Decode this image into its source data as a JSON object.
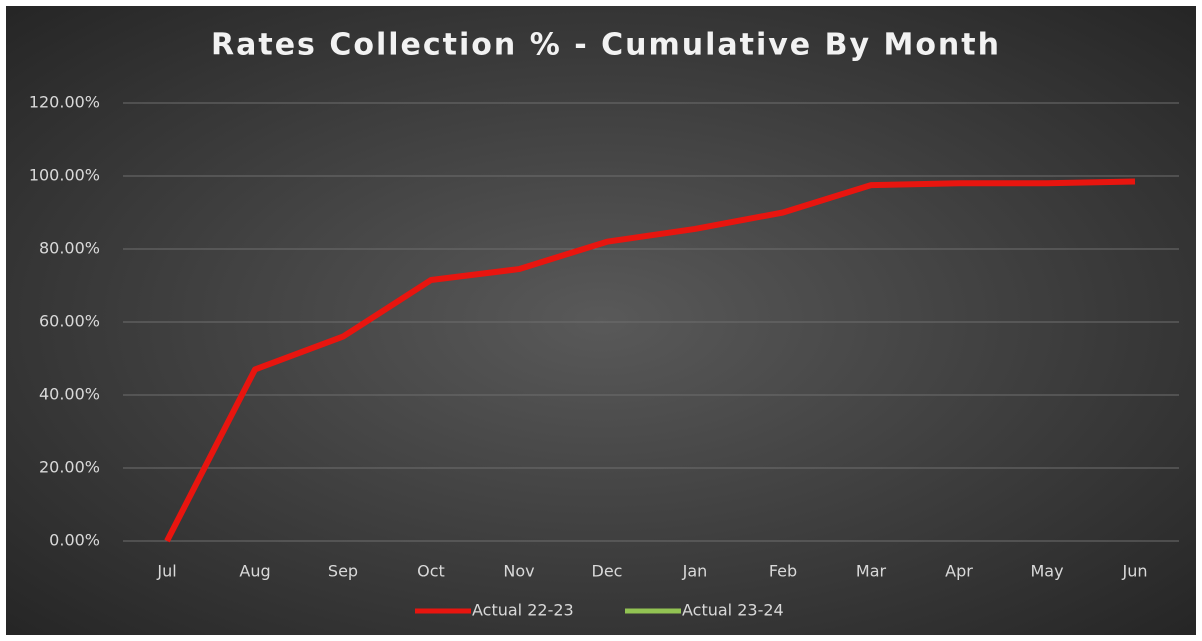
{
  "chart_data": {
    "type": "line",
    "title": "Rates Collection % - Cumulative By Month",
    "categories": [
      "Jul",
      "Aug",
      "Sep",
      "Oct",
      "Nov",
      "Dec",
      "Jan",
      "Feb",
      "Mar",
      "Apr",
      "May",
      "Jun"
    ],
    "series": [
      {
        "name": "Actual 22-23",
        "color": "#e8150f",
        "values": [
          0,
          47,
          56,
          71.5,
          74.5,
          82,
          85.5,
          90,
          97.5,
          98,
          98,
          98.5
        ]
      },
      {
        "name": "Actual 23-24",
        "color": "#92c353",
        "values": [
          null,
          null,
          null,
          null,
          null,
          null,
          null,
          null,
          null,
          null,
          null,
          null
        ]
      }
    ],
    "ylim": [
      0,
      120
    ],
    "yticks": [
      {
        "value": 0,
        "label": "0.00%"
      },
      {
        "value": 20,
        "label": "20.00%"
      },
      {
        "value": 40,
        "label": "40.00%"
      },
      {
        "value": 60,
        "label": "60.00%"
      },
      {
        "value": 80,
        "label": "80.00%"
      },
      {
        "value": 100,
        "label": "100.00%"
      },
      {
        "value": 120,
        "label": "120.00%"
      }
    ],
    "grid": true,
    "legend": "bottom"
  }
}
